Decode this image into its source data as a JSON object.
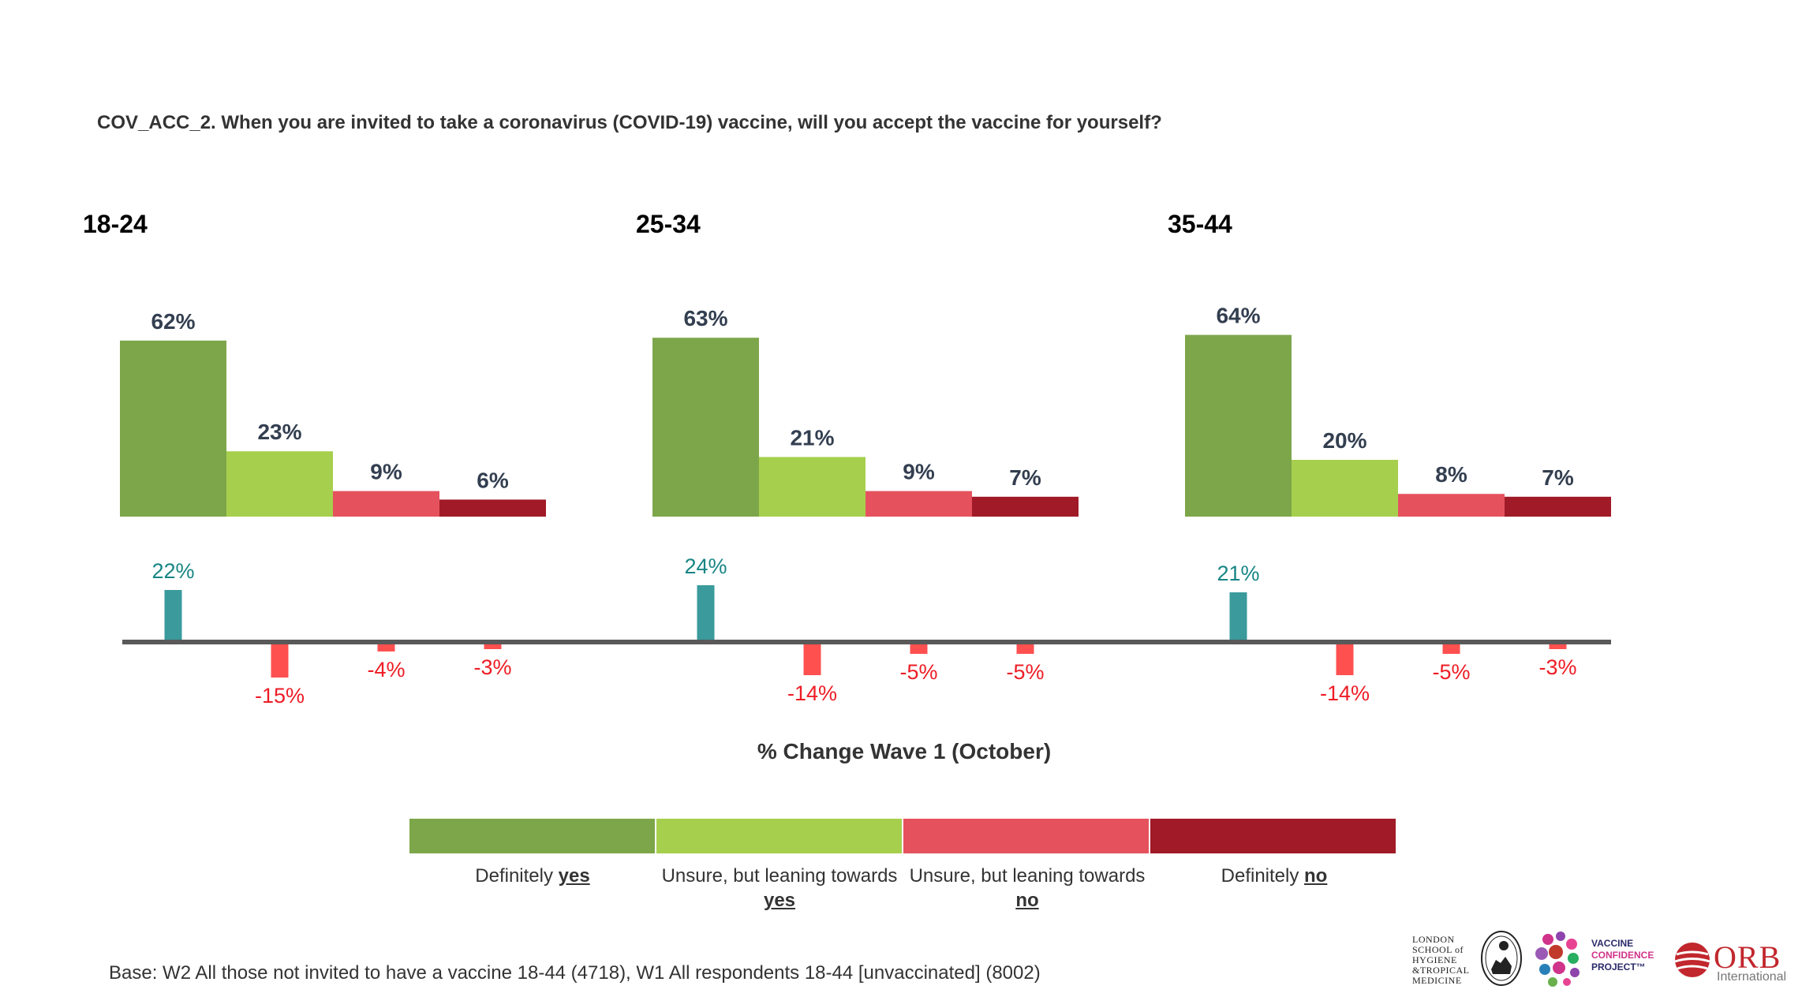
{
  "question": "COV_ACC_2. When you are invited to take a coronavirus (COVID-19) vaccine, will you accept the vaccine for yourself?",
  "colors": {
    "definitely_yes": "#7da64a",
    "leaning_yes": "#a7cf4e",
    "leaning_no": "#e5525e",
    "definitely_no": "#a11a27",
    "change_positive": "#3a9a9c",
    "change_negative": "#ff5050",
    "change_positive_text": "#178584",
    "change_negative_text": "#ee1c25",
    "bar_label_text": "#333f50",
    "axis_line": "#595959"
  },
  "chart_data": {
    "type": "bar",
    "categories": [
      "Definitely yes",
      "Unsure, but leaning towards yes",
      "Unsure, but leaning towards no",
      "Definitely no"
    ],
    "groups": [
      {
        "name": "18-24",
        "values": [
          62,
          23,
          9,
          6
        ],
        "labels": [
          "62%",
          "23%",
          "9%",
          "6%"
        ],
        "change": [
          22,
          -15,
          -4,
          -3
        ],
        "change_labels": [
          "22%",
          "-15%",
          "-4%",
          "-3%"
        ]
      },
      {
        "name": "25-34",
        "values": [
          63,
          21,
          9,
          7
        ],
        "labels": [
          "63%",
          "21%",
          "9%",
          "7%"
        ],
        "change": [
          24,
          -14,
          -5,
          -5
        ],
        "change_labels": [
          "24%",
          "-14%",
          "-5%",
          "-5%"
        ]
      },
      {
        "name": "35-44",
        "values": [
          64,
          20,
          8,
          7
        ],
        "labels": [
          "64%",
          "20%",
          "8%",
          "7%"
        ],
        "change": [
          21,
          -14,
          -5,
          -3
        ],
        "change_labels": [
          "21%",
          "-14%",
          "-5%",
          "-3%"
        ]
      }
    ],
    "change_axis_label": "% Change Wave 1 (October)",
    "legend_placement": "bottom-center"
  },
  "legend": [
    {
      "text": "Definitely ",
      "emph": "yes"
    },
    {
      "text": "Unsure, but leaning towards ",
      "emph": "yes"
    },
    {
      "text": "Unsure, but leaning towards ",
      "emph": "no"
    },
    {
      "text": "Definitely ",
      "emph": "no"
    }
  ],
  "base_note": "Base: W2 All those not invited to have a vaccine 18-44 (4718), W1 All respondents 18-44 [unvaccinated] (8002)",
  "logos": {
    "lshtm": [
      "LONDON",
      "SCHOOL of",
      "HYGIENE",
      "&TROPICAL",
      "MEDICINE"
    ],
    "vcp": [
      "VACCINE",
      "CONFIDENCE",
      "PROJECT™"
    ],
    "orb": [
      "ORB",
      "International"
    ]
  }
}
